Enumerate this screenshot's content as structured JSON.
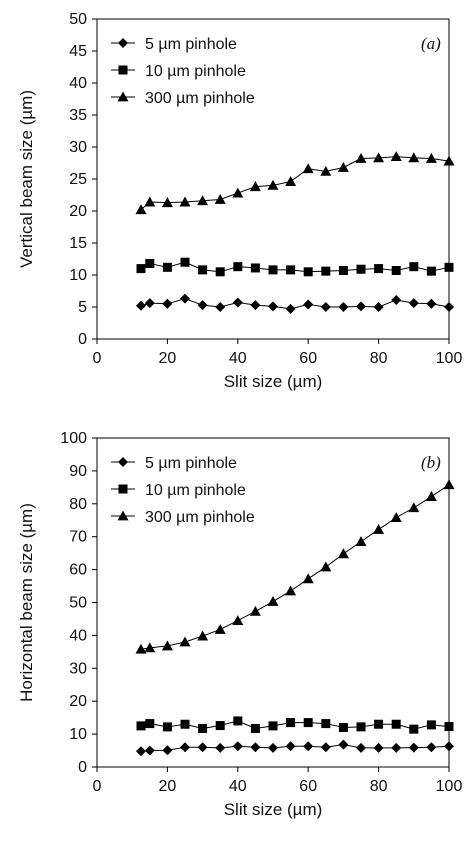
{
  "chart_data": [
    {
      "type": "line",
      "panel_label": "(a)",
      "xlabel": "Slit size (µm)",
      "ylabel": "Vertical beam size (µm)",
      "xlim": [
        0,
        100
      ],
      "ylim": [
        0,
        50
      ],
      "xticks": [
        0,
        20,
        40,
        60,
        80,
        100
      ],
      "yticks": [
        0,
        5,
        10,
        15,
        20,
        25,
        30,
        35,
        40,
        45,
        50
      ],
      "legend_position": "top-left",
      "series": [
        {
          "name": "5 µm pinhole",
          "marker": "diamond",
          "x": [
            12.5,
            15,
            20,
            25,
            30,
            35,
            40,
            45,
            50,
            55,
            60,
            65,
            70,
            75,
            80,
            85,
            90,
            95,
            100
          ],
          "y": [
            5.2,
            5.6,
            5.5,
            6.3,
            5.3,
            5.0,
            5.7,
            5.3,
            5.1,
            4.7,
            5.4,
            5.0,
            5.0,
            5.1,
            5.0,
            6.1,
            5.6,
            5.5,
            5.0
          ]
        },
        {
          "name": "10 µm pinhole",
          "marker": "square",
          "x": [
            12.5,
            15,
            20,
            25,
            30,
            35,
            40,
            45,
            50,
            55,
            60,
            65,
            70,
            75,
            80,
            85,
            90,
            95,
            100
          ],
          "y": [
            11.0,
            11.8,
            11.2,
            12.0,
            10.8,
            10.5,
            11.3,
            11.1,
            10.8,
            10.8,
            10.5,
            10.6,
            10.7,
            10.9,
            11.0,
            10.7,
            11.3,
            10.6,
            11.2
          ]
        },
        {
          "name": "300 µm pinhole",
          "marker": "triangle",
          "x": [
            12.5,
            15,
            20,
            25,
            30,
            35,
            40,
            45,
            50,
            55,
            60,
            65,
            70,
            75,
            80,
            85,
            90,
            95,
            100
          ],
          "y": [
            20.2,
            21.4,
            21.3,
            21.4,
            21.6,
            21.8,
            22.8,
            23.8,
            24.0,
            24.6,
            26.6,
            26.2,
            26.8,
            28.2,
            28.3,
            28.5,
            28.3,
            28.2,
            27.8
          ]
        }
      ]
    },
    {
      "type": "line",
      "panel_label": "(b)",
      "xlabel": "Slit size (µm)",
      "ylabel": "Horizontal beam size (µm)",
      "xlim": [
        0,
        100
      ],
      "ylim": [
        0,
        100
      ],
      "xticks": [
        0,
        20,
        40,
        60,
        80,
        100
      ],
      "yticks": [
        0,
        10,
        20,
        30,
        40,
        50,
        60,
        70,
        80,
        90,
        100
      ],
      "legend_position": "top-left",
      "series": [
        {
          "name": "5 µm pinhole",
          "marker": "diamond",
          "x": [
            12.5,
            15,
            20,
            25,
            30,
            35,
            40,
            45,
            50,
            55,
            60,
            65,
            70,
            75,
            80,
            85,
            90,
            95,
            100
          ],
          "y": [
            4.8,
            5.0,
            5.1,
            6.0,
            6.0,
            5.8,
            6.3,
            6.0,
            5.8,
            6.3,
            6.3,
            6.0,
            6.8,
            5.8,
            5.8,
            5.8,
            5.9,
            6.0,
            6.3
          ]
        },
        {
          "name": "10 µm pinhole",
          "marker": "square",
          "x": [
            12.5,
            15,
            20,
            25,
            30,
            35,
            40,
            45,
            50,
            55,
            60,
            65,
            70,
            75,
            80,
            85,
            90,
            95,
            100
          ],
          "y": [
            12.5,
            13.2,
            12.2,
            13.0,
            11.7,
            12.6,
            14.0,
            11.7,
            12.5,
            13.5,
            13.5,
            13.2,
            12.0,
            12.2,
            13.0,
            13.0,
            11.5,
            12.8,
            12.3
          ]
        },
        {
          "name": "300 µm pinhole",
          "marker": "triangle",
          "x": [
            12.5,
            15,
            20,
            25,
            30,
            35,
            40,
            45,
            50,
            55,
            60,
            65,
            70,
            75,
            80,
            85,
            90,
            95,
            100
          ],
          "y": [
            35.8,
            36.2,
            36.8,
            38.0,
            39.8,
            41.8,
            44.5,
            47.3,
            50.3,
            53.5,
            57.2,
            60.8,
            64.8,
            68.5,
            72.2,
            75.8,
            78.8,
            82.2,
            85.8
          ]
        }
      ]
    }
  ]
}
